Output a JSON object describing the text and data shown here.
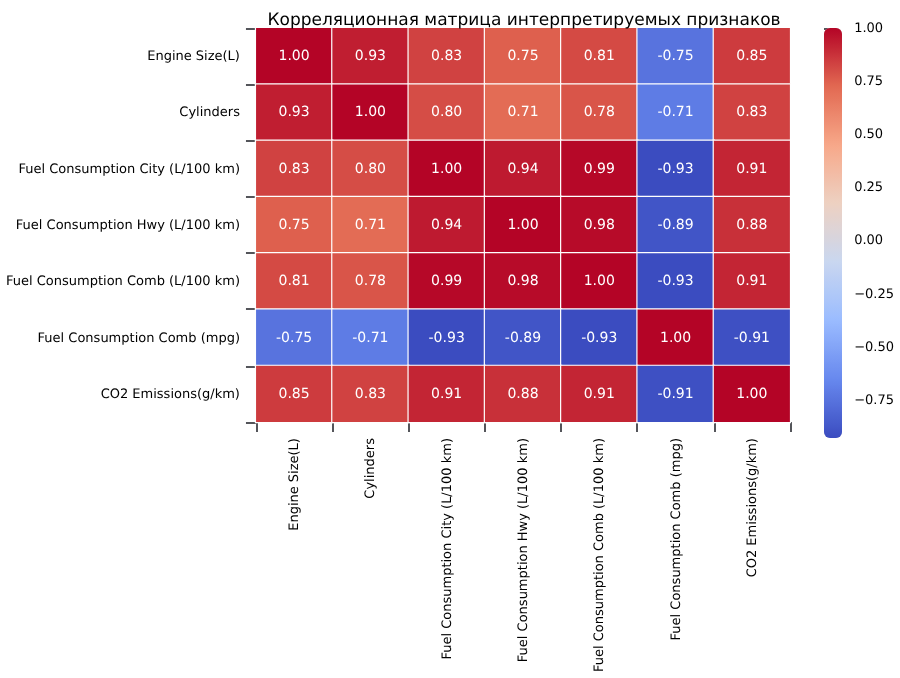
{
  "chart_data": {
    "type": "heatmap",
    "title": "Корреляционная матрица интерпретируемых признаков",
    "categories": [
      "Engine Size(L)",
      "Cylinders",
      "Fuel Consumption City (L/100 km)",
      "Fuel Consumption Hwy (L/100 km)",
      "Fuel Consumption Comb (L/100 km)",
      "Fuel Consumption Comb (mpg)",
      "CO2 Emissions(g/km)"
    ],
    "y_categories": [
      "Engine Size(L)",
      "Cylinders",
      "Fuel Consumption City (L/100 km)",
      "Fuel Consumption Hwy (L/100 km)",
      "Fuel Consumption Comb (L/100 km)",
      "Fuel Consumption Comb (mpg)",
      "CO2 Emissions(g/km)"
    ],
    "cells": [
      [
        1.0,
        0.93,
        0.83,
        0.75,
        0.81,
        -0.75,
        0.85
      ],
      [
        0.93,
        1.0,
        0.8,
        0.71,
        0.78,
        -0.71,
        0.83
      ],
      [
        0.83,
        0.8,
        1.0,
        0.94,
        0.99,
        -0.93,
        0.91
      ],
      [
        0.75,
        0.71,
        0.94,
        1.0,
        0.98,
        -0.89,
        0.88
      ],
      [
        0.81,
        0.78,
        0.99,
        0.98,
        1.0,
        -0.93,
        0.91
      ],
      [
        -0.75,
        -0.71,
        -0.93,
        -0.89,
        -0.93,
        1.0,
        -0.91
      ],
      [
        0.85,
        0.83,
        0.91,
        0.88,
        0.91,
        -0.91,
        1.0
      ]
    ],
    "cell_labels": [
      [
        "1.00",
        "0.93",
        "0.83",
        "0.75",
        "0.81",
        "-0.75",
        "0.85"
      ],
      [
        "0.93",
        "1.00",
        "0.80",
        "0.71",
        "0.78",
        "-0.71",
        "0.83"
      ],
      [
        "0.83",
        "0.80",
        "1.00",
        "0.94",
        "0.99",
        "-0.93",
        "0.91"
      ],
      [
        "0.75",
        "0.71",
        "0.94",
        "1.00",
        "0.98",
        "-0.89",
        "0.88"
      ],
      [
        "0.81",
        "0.78",
        "0.99",
        "0.98",
        "1.00",
        "-0.93",
        "0.91"
      ],
      [
        "-0.75",
        "-0.71",
        "-0.93",
        "-0.89",
        "-0.93",
        "1.00",
        "-0.91"
      ],
      [
        "0.85",
        "0.83",
        "0.91",
        "0.88",
        "0.91",
        "-0.91",
        "1.00"
      ]
    ],
    "data_labels": true,
    "clim": [
      -0.93,
      1.0
    ],
    "cticks": [
      {
        "value": -0.75,
        "label": "−0.75"
      },
      {
        "value": -0.5,
        "label": "−0.50"
      },
      {
        "value": -0.25,
        "label": "−0.25"
      },
      {
        "value": 0,
        "label": "0.00"
      },
      {
        "value": 0.25,
        "label": "0.25"
      },
      {
        "value": 0.5,
        "label": "0.50"
      },
      {
        "value": 0.75,
        "label": "0.75"
      },
      {
        "value": 1,
        "label": "1.00"
      }
    ]
  }
}
